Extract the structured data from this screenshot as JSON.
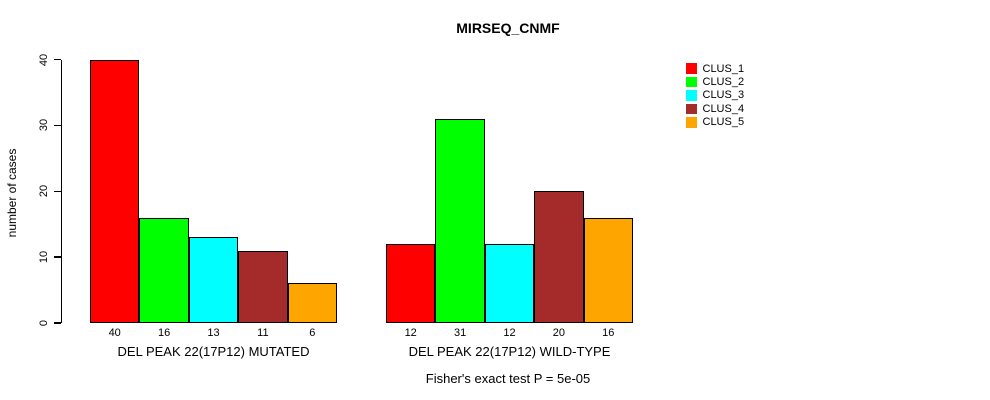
{
  "figure": {
    "title": "MIRSEQ_CNMF",
    "y_axis_label": "number of cases",
    "annotation": "Fisher's exact test P = 5e-05"
  },
  "chart_data": {
    "type": "bar",
    "title": "MIRSEQ_CNMF",
    "xlabel": "",
    "ylabel": "number of cases",
    "ylim": [
      0,
      40
    ],
    "yticks": [
      0,
      10,
      20,
      30,
      40
    ],
    "grid": false,
    "legend_position": "right",
    "bar_value_labels": true,
    "series": [
      {
        "name": "CLUS_1",
        "color": "#FF0000"
      },
      {
        "name": "CLUS_2",
        "color": "#00FF00"
      },
      {
        "name": "CLUS_3",
        "color": "#00FFFF"
      },
      {
        "name": "CLUS_4",
        "color": "#A52A2A"
      },
      {
        "name": "CLUS_5",
        "color": "#FFA500"
      }
    ],
    "groups": [
      {
        "label": "DEL PEAK 22(17P12) MUTATED",
        "values": [
          40,
          16,
          13,
          11,
          6
        ]
      },
      {
        "label": "DEL PEAK 22(17P12) WILD-TYPE",
        "values": [
          12,
          31,
          12,
          20,
          16
        ]
      }
    ],
    "annotation": "Fisher's exact test P = 5e-05"
  }
}
